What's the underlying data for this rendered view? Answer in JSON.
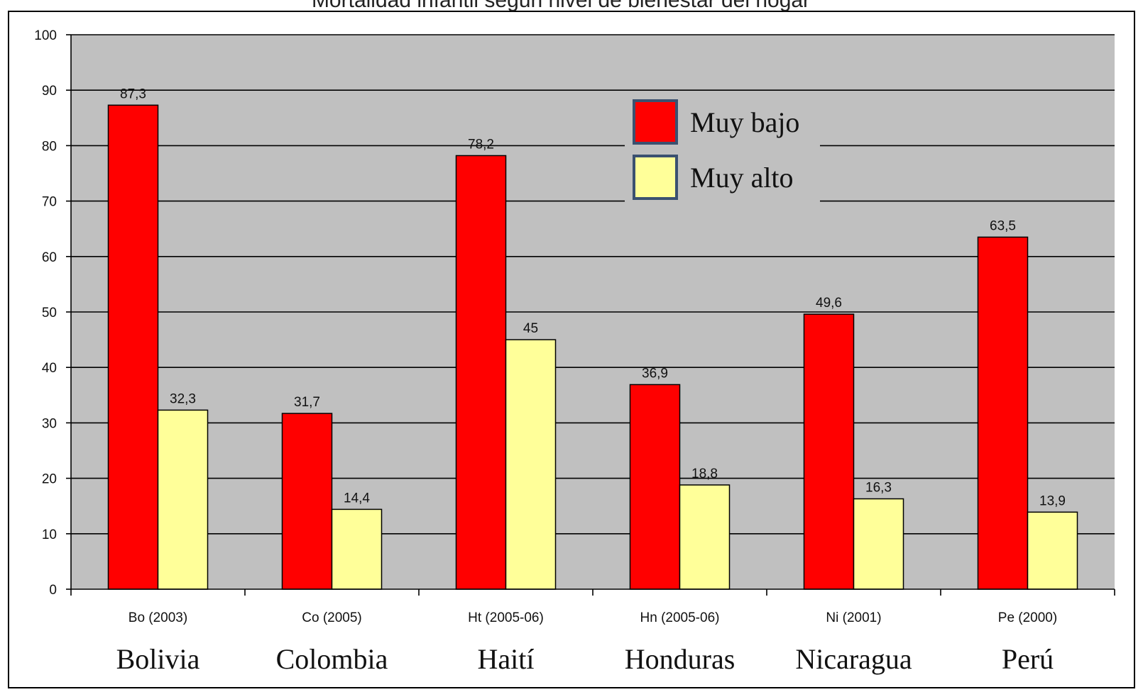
{
  "chart_data": {
    "type": "bar",
    "title": "Mortalidad infantil según nivel de bienestar del hogar",
    "categories": [
      "Bo (2003)",
      "Co (2005)",
      "Ht (2005-06)",
      "Hn (2005-06)",
      "Ni (2001)",
      "Pe (2000)"
    ],
    "country_names": [
      "Bolivia",
      "Colombia",
      "Haití",
      "Honduras",
      "Nicaragua",
      "Perú"
    ],
    "series": [
      {
        "name": "Muy bajo",
        "color": "#ff0000",
        "values": [
          87.3,
          31.7,
          78.2,
          36.9,
          49.6,
          63.5
        ],
        "labels": [
          "87,3",
          "31,7",
          "78,2",
          "36,9",
          "49,6",
          "63,5"
        ]
      },
      {
        "name": "Muy alto",
        "color": "#ffff99",
        "values": [
          32.3,
          14.4,
          45,
          18.8,
          16.3,
          13.9
        ],
        "labels": [
          "32,3",
          "14,4",
          "45",
          "18,8",
          "16,3",
          "13,9"
        ]
      }
    ],
    "y_ticks": [
      "0",
      "10",
      "20",
      "30",
      "40",
      "50",
      "60",
      "70",
      "80",
      "90",
      "100"
    ],
    "ylim": [
      0,
      100
    ],
    "grid": true,
    "legend_position": "top-right",
    "plot_background": "#c0c0c0"
  }
}
